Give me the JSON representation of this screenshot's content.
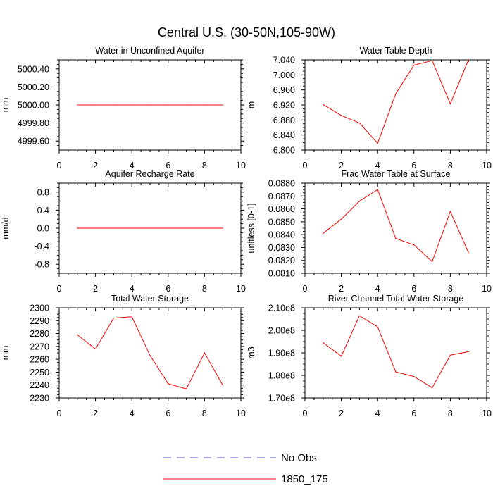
{
  "figure": {
    "title": "Central U.S. (30-50N,105-90W)"
  },
  "legend": {
    "entries": [
      {
        "label": "No Obs",
        "style": "dashed",
        "color": "#5a5ad2"
      },
      {
        "label": "1850_175",
        "style": "solid",
        "color": "#ff0000"
      }
    ]
  },
  "chart_data": [
    {
      "type": "line",
      "title": "Water in Unconfined Aquifer",
      "ylabel": "mm",
      "xlabel": "",
      "xlim": [
        0,
        10
      ],
      "ylim": [
        4999.5,
        5000.5
      ],
      "xticks": [
        0,
        2,
        4,
        6,
        8,
        10
      ],
      "yticks": [
        4999.6,
        4999.8,
        5000.0,
        5000.2,
        5000.4
      ],
      "yticklabels": [
        "4999.60",
        "4999.80",
        "5000.00",
        "5000.20",
        "5000.40"
      ],
      "series": [
        {
          "name": "1850_175",
          "color": "#ff0000",
          "x": [
            1,
            2,
            3,
            4,
            5,
            6,
            7,
            8,
            9
          ],
          "values": [
            5000.0,
            5000.0,
            5000.0,
            5000.0,
            5000.0,
            5000.0,
            5000.0,
            5000.0,
            5000.0
          ]
        }
      ]
    },
    {
      "type": "line",
      "title": "Water Table Depth",
      "ylabel": "m",
      "xlabel": "",
      "xlim": [
        0,
        10
      ],
      "ylim": [
        6.8,
        7.04
      ],
      "xticks": [
        0,
        2,
        4,
        6,
        8,
        10
      ],
      "yticks": [
        6.8,
        6.84,
        6.88,
        6.92,
        6.96,
        7.0,
        7.04
      ],
      "yticklabels": [
        "6.800",
        "6.840",
        "6.880",
        "6.920",
        "6.960",
        "7.000",
        "7.040"
      ],
      "series": [
        {
          "name": "1850_175",
          "color": "#ff0000",
          "x": [
            1,
            2,
            3,
            4,
            5,
            6,
            7,
            8,
            9
          ],
          "values": [
            6.921,
            6.892,
            6.872,
            6.818,
            6.95,
            7.026,
            7.038,
            6.923,
            7.04
          ]
        }
      ]
    },
    {
      "type": "line",
      "title": "Aquifer Recharge Rate",
      "ylabel": "mm/d",
      "xlabel": "",
      "xlim": [
        0,
        10
      ],
      "ylim": [
        -1.0,
        1.0
      ],
      "xticks": [
        0,
        2,
        4,
        6,
        8,
        10
      ],
      "yticks": [
        -0.8,
        -0.4,
        0.0,
        0.4,
        0.8
      ],
      "yticklabels": [
        "-0.8",
        "-0.4",
        "0.0",
        "0.4",
        "0.8"
      ],
      "series": [
        {
          "name": "1850_175",
          "color": "#ff0000",
          "x": [
            1,
            2,
            3,
            4,
            5,
            6,
            7,
            8,
            9
          ],
          "values": [
            0,
            0,
            0,
            0,
            0,
            0,
            0,
            0,
            0
          ]
        }
      ]
    },
    {
      "type": "line",
      "title": "Frac Water Table at Surface",
      "ylabel": "unitless [0-1]",
      "xlabel": "",
      "xlim": [
        0,
        10
      ],
      "ylim": [
        0.081,
        0.088
      ],
      "xticks": [
        0,
        2,
        4,
        6,
        8,
        10
      ],
      "yticks": [
        0.081,
        0.082,
        0.083,
        0.084,
        0.085,
        0.086,
        0.087,
        0.088
      ],
      "yticklabels": [
        "0.0810",
        "0.0820",
        "0.0830",
        "0.0840",
        "0.0850",
        "0.0860",
        "0.0870",
        "0.0880"
      ],
      "series": [
        {
          "name": "1850_175",
          "color": "#ff0000",
          "x": [
            1,
            2,
            3,
            4,
            5,
            6,
            7,
            8,
            9
          ],
          "values": [
            0.0841,
            0.0852,
            0.0866,
            0.0875,
            0.0837,
            0.0832,
            0.0819,
            0.0858,
            0.0826
          ]
        }
      ]
    },
    {
      "type": "line",
      "title": "Total Water Storage",
      "ylabel": "mm",
      "xlabel": "",
      "xlim": [
        0,
        10
      ],
      "ylim": [
        2230,
        2300
      ],
      "xticks": [
        0,
        2,
        4,
        6,
        8,
        10
      ],
      "yticks": [
        2230,
        2240,
        2250,
        2260,
        2270,
        2280,
        2290,
        2300
      ],
      "yticklabels": [
        "2230",
        "2240",
        "2250",
        "2260",
        "2270",
        "2280",
        "2290",
        "2300"
      ],
      "series": [
        {
          "name": "1850_175",
          "color": "#ff0000",
          "x": [
            1,
            2,
            3,
            4,
            5,
            6,
            7,
            8,
            9
          ],
          "values": [
            2279,
            2268,
            2292,
            2293,
            2263,
            2241,
            2237,
            2265,
            2240
          ]
        }
      ]
    },
    {
      "type": "line",
      "title": "River Channel Total Water Storage",
      "ylabel": "m3",
      "xlabel": "",
      "xlim": [
        0,
        10
      ],
      "ylim": [
        170000000,
        210000000
      ],
      "xticks": [
        0,
        2,
        4,
        6,
        8,
        10
      ],
      "yticks": [
        170000000,
        180000000,
        190000000,
        200000000,
        210000000
      ],
      "yticklabels": [
        "1.70e8",
        "1.80e8",
        "1.90e8",
        "2.00e8",
        "2.10e8"
      ],
      "series": [
        {
          "name": "1850_175",
          "color": "#ff0000",
          "x": [
            1,
            2,
            3,
            4,
            5,
            6,
            7,
            8,
            9
          ],
          "values": [
            194500000,
            188500000,
            206500000,
            201500000,
            181500000,
            179500000,
            174500000,
            189000000,
            190500000
          ]
        }
      ]
    }
  ]
}
